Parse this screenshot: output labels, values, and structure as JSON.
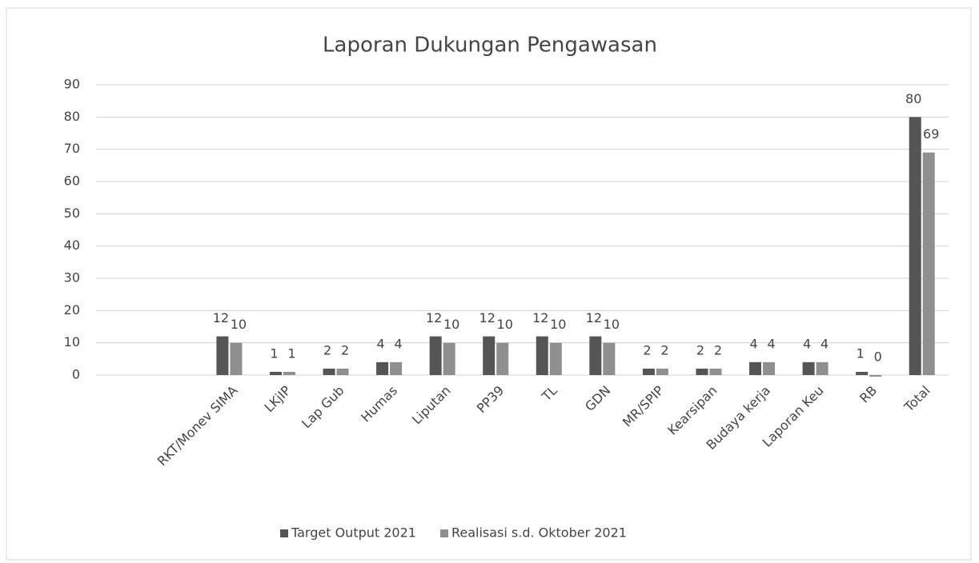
{
  "chart_data": {
    "type": "bar",
    "title": "Laporan Dukungan Pengawasan",
    "categories": [
      null,
      null,
      "RKT/Monev SIMA",
      "LKjIP",
      "Lap Gub",
      "Humas",
      "Liputan",
      "PP39",
      "TL",
      "GDN",
      "MR/SPIP",
      "Kearsipan",
      "Budaya kerja",
      "Laporan Keu",
      "RB",
      "Total"
    ],
    "series": [
      {
        "name": "Target Output 2021",
        "color": "#555555",
        "values": [
          null,
          null,
          12,
          1,
          2,
          4,
          12,
          12,
          12,
          12,
          2,
          2,
          4,
          4,
          1,
          80
        ]
      },
      {
        "name": "Realisasi s.d. Oktober 2021",
        "color": "#8f8f8f",
        "values": [
          null,
          null,
          10,
          1,
          2,
          4,
          10,
          10,
          10,
          10,
          2,
          2,
          4,
          4,
          0,
          69
        ]
      }
    ],
    "ylim": [
      0,
      90
    ],
    "yticks": [
      0,
      10,
      20,
      30,
      40,
      50,
      60,
      70,
      80,
      90
    ],
    "grid": true,
    "legend": "bottom"
  }
}
